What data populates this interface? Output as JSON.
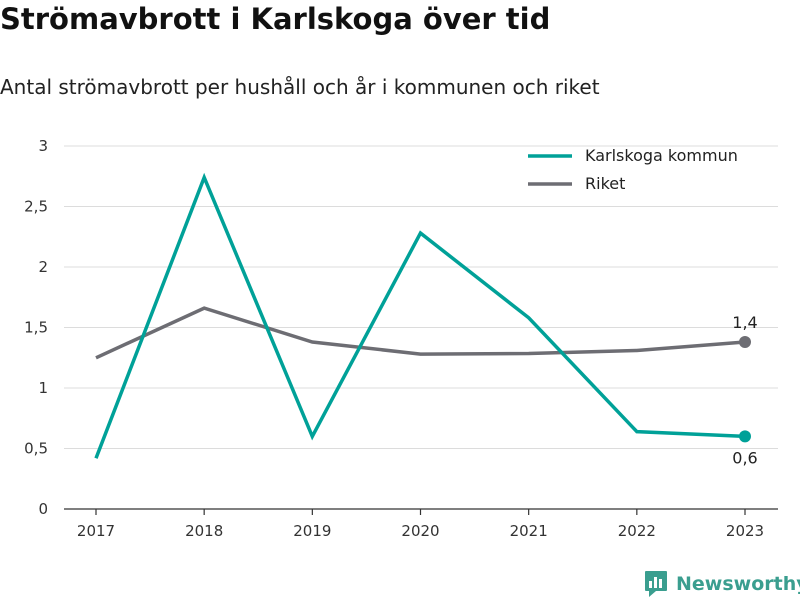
{
  "title": "Strömavbrott i Karlskoga över tid",
  "subtitle": "Antal strömavbrott per hushåll och år i kommunen och riket",
  "brand": {
    "name": "Newsworthy",
    "logo_icon": "newsworthy-logo-icon"
  },
  "chart_data": {
    "type": "line",
    "x": [
      2017,
      2018,
      2019,
      2020,
      2021,
      2022,
      2023
    ],
    "x_tick_labels": [
      "2017",
      "2018",
      "2019",
      "2020",
      "2021",
      "2022",
      "2023"
    ],
    "y_tick_labels": [
      "0",
      "0,5",
      "1",
      "1,5",
      "2",
      "2,5",
      "3"
    ],
    "y_ticks": [
      0,
      0.5,
      1,
      1.5,
      2,
      2.5,
      3
    ],
    "ylim": [
      0,
      3
    ],
    "grid": true,
    "legend_position": "top-right",
    "series": [
      {
        "name": "Karlskoga kommun",
        "color": "#00a198",
        "values": [
          0.42,
          2.74,
          0.6,
          2.28,
          1.58,
          0.64,
          0.6
        ],
        "end_label": "0,6"
      },
      {
        "name": "Riket",
        "color": "#6d6d73",
        "values": [
          1.25,
          1.66,
          1.38,
          1.28,
          1.285,
          1.31,
          1.38
        ],
        "end_label": "1,4"
      }
    ]
  }
}
